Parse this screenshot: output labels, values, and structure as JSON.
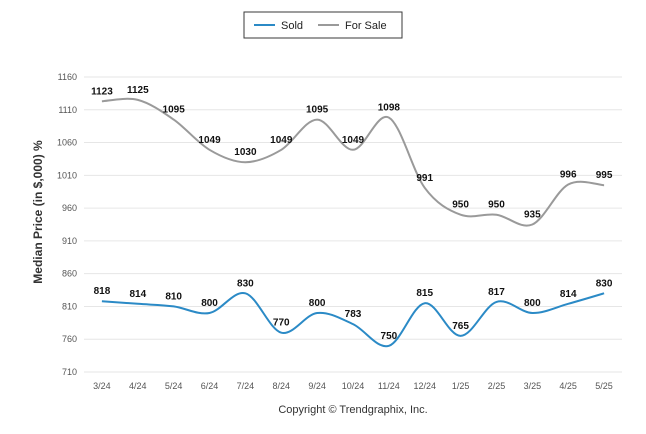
{
  "chart_data": {
    "type": "line",
    "categories": [
      "3/24",
      "4/24",
      "5/24",
      "6/24",
      "7/24",
      "8/24",
      "9/24",
      "10/24",
      "11/24",
      "12/24",
      "1/25",
      "2/25",
      "3/25",
      "4/25",
      "5/25"
    ],
    "series": [
      {
        "name": "Sold",
        "color": "#2b8ac6",
        "values": [
          818,
          814,
          810,
          800,
          830,
          770,
          800,
          783,
          750,
          815,
          765,
          817,
          800,
          814,
          830
        ]
      },
      {
        "name": "For Sale",
        "color": "#9a9a9a",
        "values": [
          1123,
          1125,
          1095,
          1049,
          1030,
          1049,
          1095,
          1049,
          1098,
          991,
          950,
          950,
          935,
          996,
          995
        ]
      }
    ],
    "ylabel": "Median Price (in $,000) %",
    "xlabel": "",
    "ylim": [
      710,
      1160
    ],
    "yticks": [
      710,
      760,
      810,
      860,
      910,
      960,
      1010,
      1060,
      1110,
      1160
    ],
    "grid": true,
    "legend": "top-center"
  },
  "footer": {
    "copyright": "Copyright © Trendgraphix, Inc."
  }
}
